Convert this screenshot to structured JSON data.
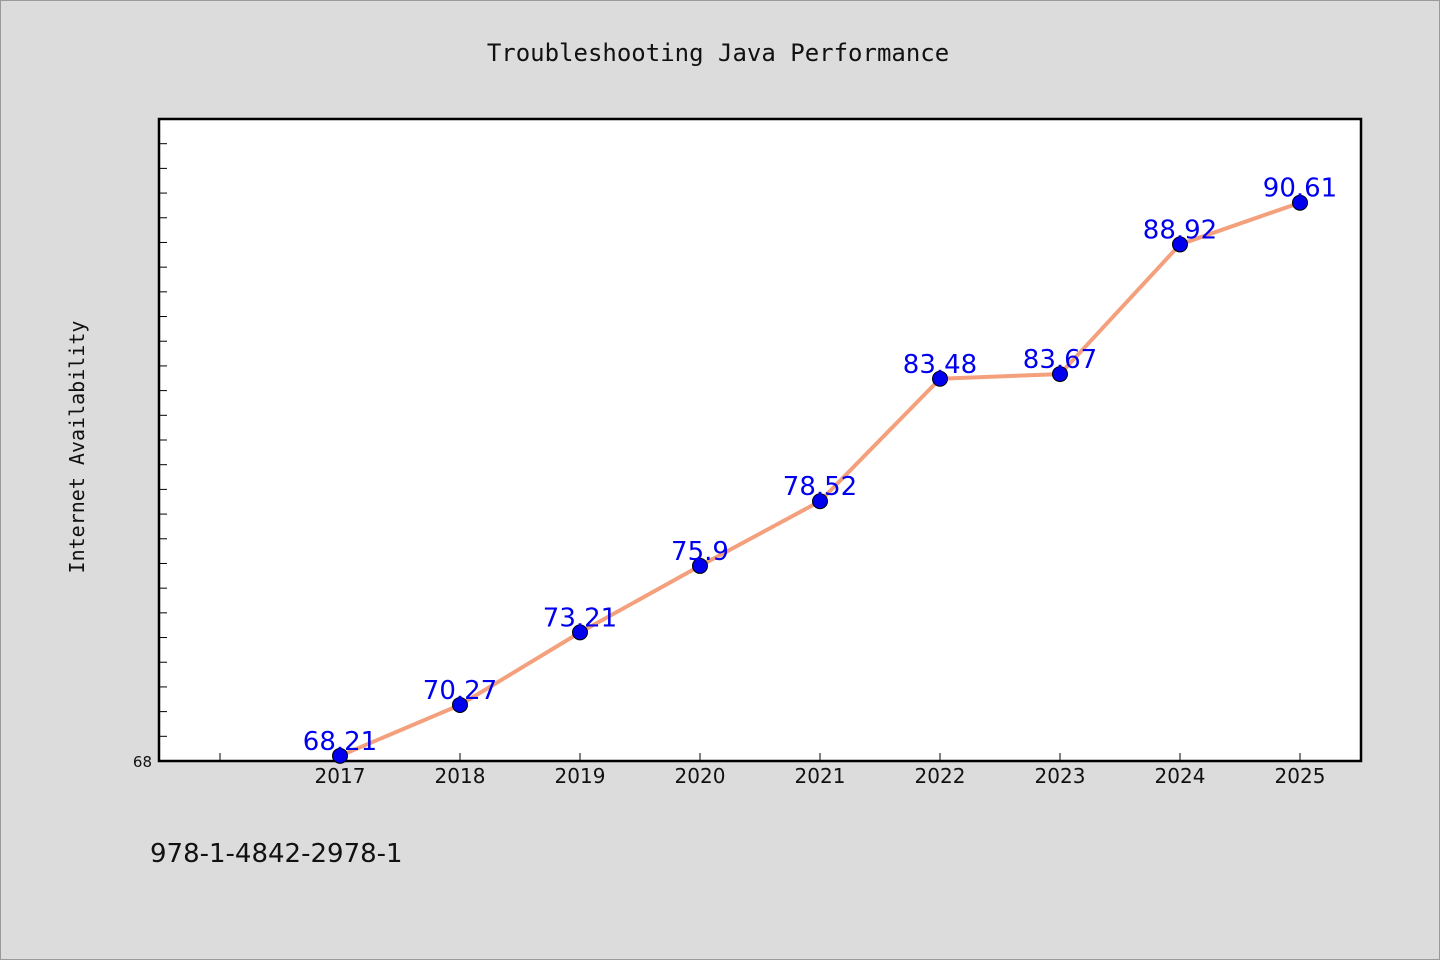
{
  "chart_data": {
    "type": "line",
    "title": "Troubleshooting Java Performance",
    "xlabel": "",
    "ylabel": "Internet Availability",
    "categories": [
      "2017",
      "2018",
      "2019",
      "2020",
      "2021",
      "2022",
      "2023",
      "2024",
      "2025"
    ],
    "values": [
      68.21,
      70.27,
      73.21,
      75.9,
      78.52,
      83.48,
      83.67,
      88.92,
      90.61
    ],
    "data_labels": [
      "68.21",
      "70.27",
      "73.21",
      "75.9",
      "78.52",
      "83.48",
      "83.67",
      "88.92",
      "90.61"
    ],
    "y_tick_labels": [
      "68"
    ],
    "ylim": [
      68,
      94
    ],
    "line_color": "#f4a07c",
    "marker_color": "#0000ee",
    "label_color": "#0000ee",
    "legend": "none",
    "grid": false
  },
  "footer": {
    "isbn": "978-1-4842-2978-1"
  }
}
